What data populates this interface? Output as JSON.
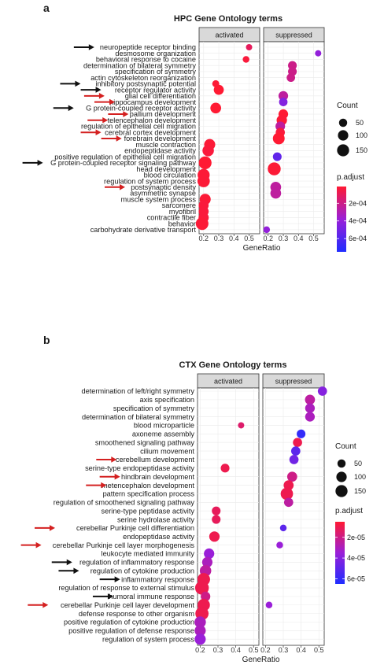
{
  "chart_data": [
    {
      "type": "scatter",
      "panel_letter": "a",
      "title": "HPC Gene Ontology terms",
      "xlabel": "GeneRatio",
      "x_ticks": [
        "0.2",
        "0.3",
        "0.4",
        "0.5"
      ],
      "facets": [
        "activated",
        "suppressed"
      ],
      "facet_xlim": [
        [
          0.17,
          0.57
        ],
        [
          0.17,
          0.57
        ]
      ],
      "terms": [
        "neuropeptide receptor binding",
        "desmosome organization",
        "behavioral response to cocaine",
        "determination of bilateral symmetry",
        "specification of symmetry",
        "actin cytoskeleton reorganization",
        "inhibitory postsynaptic potential",
        "receptor regulator activity",
        "glial cell differentiation",
        "hippocampus development",
        "G protein-coupled receptor activity",
        "pallium development",
        "telencephalon development",
        "regulation of epithelial cell migration",
        "cerebral cortex development",
        "forebrain development",
        "muscle contraction",
        "endopeptidase activity",
        "positive regulation of epithelial cell migration",
        "G protein-coupled receptor signaling pathway",
        "head development",
        "blood circulation",
        "regulation of system process",
        "postsynaptic density",
        "asymmetric synapse",
        "muscle system process",
        "sarcomere",
        "myofibril",
        "contractile fiber",
        "behavior",
        "carbohydrate derivative transport"
      ],
      "arrows": [
        {
          "term": "neuropeptide receptor binding",
          "color": "#111111"
        },
        {
          "term": "inhibitory postsynaptic potential",
          "color": "#111111"
        },
        {
          "term": "receptor regulator activity",
          "color": "#111111"
        },
        {
          "term": "glial cell differentiation",
          "color": "#d42020"
        },
        {
          "term": "hippocampus development",
          "color": "#d42020"
        },
        {
          "term": "G protein-coupled receptor activity",
          "color": "#111111"
        },
        {
          "term": "pallium development",
          "color": "#d42020"
        },
        {
          "term": "telencephalon development",
          "color": "#d42020"
        },
        {
          "term": "cerebral cortex development",
          "color": "#d42020"
        },
        {
          "term": "forebrain development",
          "color": "#d42020"
        },
        {
          "term": "G protein-coupled receptor signaling pathway",
          "color": "#111111"
        },
        {
          "term": "postsynaptic density",
          "color": "#d42020"
        }
      ],
      "points": [
        {
          "term": "neuropeptide receptor binding",
          "facet": "activated",
          "x": 0.5,
          "count": 20,
          "p_adjust": 0.0001
        },
        {
          "term": "behavioral response to cocaine",
          "facet": "activated",
          "x": 0.48,
          "count": 25,
          "p_adjust": 3e-05
        },
        {
          "term": "inhibitory postsynaptic potential",
          "facet": "activated",
          "x": 0.28,
          "count": 30,
          "p_adjust": 2e-05
        },
        {
          "term": "receptor regulator activity",
          "facet": "activated",
          "x": 0.3,
          "count": 90,
          "p_adjust": 1e-05
        },
        {
          "term": "G protein-coupled receptor activity",
          "facet": "activated",
          "x": 0.28,
          "count": 110,
          "p_adjust": 1e-05
        },
        {
          "term": "muscle contraction",
          "facet": "activated",
          "x": 0.24,
          "count": 120,
          "p_adjust": 2e-05
        },
        {
          "term": "endopeptidase activity",
          "facet": "activated",
          "x": 0.23,
          "count": 130,
          "p_adjust": 3e-05
        },
        {
          "term": "G protein-coupled receptor signaling pathway",
          "facet": "activated",
          "x": 0.21,
          "count": 175,
          "p_adjust": 1e-05
        },
        {
          "term": "blood circulation",
          "facet": "activated",
          "x": 0.2,
          "count": 150,
          "p_adjust": 2e-05
        },
        {
          "term": "regulation of system process",
          "facet": "activated",
          "x": 0.2,
          "count": 160,
          "p_adjust": 2e-05
        },
        {
          "term": "muscle system process",
          "facet": "activated",
          "x": 0.21,
          "count": 120,
          "p_adjust": 2e-05
        },
        {
          "term": "sarcomere",
          "facet": "activated",
          "x": 0.2,
          "count": 90,
          "p_adjust": 3e-05
        },
        {
          "term": "myofibril",
          "facet": "activated",
          "x": 0.2,
          "count": 90,
          "p_adjust": 3e-05
        },
        {
          "term": "contractile fiber",
          "facet": "activated",
          "x": 0.2,
          "count": 95,
          "p_adjust": 3e-05
        },
        {
          "term": "behavior",
          "facet": "activated",
          "x": 0.19,
          "count": 170,
          "p_adjust": 2e-05
        },
        {
          "term": "desmosome organization",
          "facet": "suppressed",
          "x": 0.53,
          "count": 20,
          "p_adjust": 0.0004
        },
        {
          "term": "determination of bilateral symmetry",
          "facet": "suppressed",
          "x": 0.36,
          "count": 60,
          "p_adjust": 0.0002
        },
        {
          "term": "specification of symmetry",
          "facet": "suppressed",
          "x": 0.36,
          "count": 60,
          "p_adjust": 0.0002
        },
        {
          "term": "actin cytoskeleton reorganization",
          "facet": "suppressed",
          "x": 0.35,
          "count": 55,
          "p_adjust": 0.0002
        },
        {
          "term": "glial cell differentiation",
          "facet": "suppressed",
          "x": 0.3,
          "count": 80,
          "p_adjust": 0.00025
        },
        {
          "term": "hippocampus development",
          "facet": "suppressed",
          "x": 0.3,
          "count": 55,
          "p_adjust": 0.00045
        },
        {
          "term": "pallium development",
          "facet": "suppressed",
          "x": 0.3,
          "count": 80,
          "p_adjust": 1e-05
        },
        {
          "term": "telencephalon development",
          "facet": "suppressed",
          "x": 0.29,
          "count": 100,
          "p_adjust": 2e-05
        },
        {
          "term": "regulation of epithelial cell migration",
          "facet": "suppressed",
          "x": 0.28,
          "count": 80,
          "p_adjust": 0.00025
        },
        {
          "term": "cerebral cortex development",
          "facet": "suppressed",
          "x": 0.28,
          "count": 70,
          "p_adjust": 3e-05
        },
        {
          "term": "forebrain development",
          "facet": "suppressed",
          "x": 0.27,
          "count": 140,
          "p_adjust": 1e-05
        },
        {
          "term": "positive regulation of epithelial cell migration",
          "facet": "suppressed",
          "x": 0.26,
          "count": 60,
          "p_adjust": 0.00055
        },
        {
          "term": "head development",
          "facet": "suppressed",
          "x": 0.24,
          "count": 180,
          "p_adjust": 2e-05
        },
        {
          "term": "postsynaptic density",
          "facet": "suppressed",
          "x": 0.25,
          "count": 110,
          "p_adjust": 0.00025
        },
        {
          "term": "asymmetric synapse",
          "facet": "suppressed",
          "x": 0.25,
          "count": 110,
          "p_adjust": 0.00025
        },
        {
          "term": "carbohydrate derivative transport",
          "facet": "suppressed",
          "x": 0.19,
          "count": 25,
          "p_adjust": 0.0004
        }
      ],
      "legend": {
        "count_title": "Count",
        "count_values": [
          50,
          100,
          150
        ],
        "color_title": "p.adjust",
        "color_labels": [
          "2e-04",
          "4e-04",
          "6e-04"
        ],
        "color_label_values": [
          0.0002,
          0.0004,
          0.0006
        ],
        "p_range": [
          1e-05,
          0.00075
        ],
        "color_low": "#ff1a33",
        "color_mid": "#9a1fd8",
        "color_high": "#1f2dff"
      }
    },
    {
      "type": "scatter",
      "panel_letter": "b",
      "title": "CTX Gene Ontology terms",
      "xlabel": "GeneRatio",
      "x_ticks": [
        "0.2",
        "0.3",
        "0.4",
        "0.5"
      ],
      "facets": [
        "activated",
        "suppressed"
      ],
      "facet_xlim": [
        [
          0.185,
          0.53
        ],
        [
          0.185,
          0.53
        ]
      ],
      "terms": [
        "determination of left/right symmetry",
        "axis specification",
        "specification of symmetry",
        "determination of bilateral symmetry",
        "blood microparticle",
        "axoneme assembly",
        "smoothened signaling pathway",
        "cilium movement",
        "cerebellum development",
        "serine-type endopeptidase activity",
        "hindbrain development",
        "metencephalon development",
        "pattern specification process",
        "regulation of smoothened signaling pathway",
        "serine-type peptidase activity",
        "serine hydrolase activity",
        "cerebellar Purkinje cell differentiation",
        "endopeptidase activity",
        "cerebellar Purkinje cell layer morphogenesis",
        "leukocyte mediated immunity",
        "regulation of inflammatory response",
        "regulation of cytokine production",
        "inflammatory response",
        "regulation of response to external stimulus",
        "humoral immune response",
        "cerebellar Purkinje cell layer development",
        "defense response to other organism",
        "positive regulation of cytokine production",
        "positive regulation of defense response",
        "regulation of system process"
      ],
      "arrows": [
        {
          "term": "cerebellum development",
          "color": "#d42020"
        },
        {
          "term": "hindbrain development",
          "color": "#d42020"
        },
        {
          "term": "metencephalon development",
          "color": "#d42020"
        },
        {
          "term": "cerebellar Purkinje cell differentiation",
          "color": "#d42020"
        },
        {
          "term": "cerebellar Purkinje cell layer morphogenesis",
          "color": "#d42020"
        },
        {
          "term": "regulation of inflammatory response",
          "color": "#111111"
        },
        {
          "term": "regulation of cytokine production",
          "color": "#111111"
        },
        {
          "term": "inflammatory response",
          "color": "#111111"
        },
        {
          "term": "humoral immune response",
          "color": "#111111"
        },
        {
          "term": "cerebellar Purkinje cell layer development",
          "color": "#d42020"
        }
      ],
      "points": [
        {
          "term": "blood microparticle",
          "facet": "activated",
          "x": 0.43,
          "count": 20,
          "p_adjust": 1.5e-05
        },
        {
          "term": "serine-type endopeptidase activity",
          "facet": "activated",
          "x": 0.34,
          "count": 60,
          "p_adjust": 1e-05
        },
        {
          "term": "serine-type peptidase activity",
          "facet": "activated",
          "x": 0.29,
          "count": 60,
          "p_adjust": 1.2e-05
        },
        {
          "term": "serine hydrolase activity",
          "facet": "activated",
          "x": 0.29,
          "count": 60,
          "p_adjust": 1.2e-05
        },
        {
          "term": "endopeptidase activity",
          "facet": "activated",
          "x": 0.28,
          "count": 100,
          "p_adjust": 1e-05
        },
        {
          "term": "leukocyte mediated immunity",
          "facet": "activated",
          "x": 0.25,
          "count": 100,
          "p_adjust": 3.5e-05
        },
        {
          "term": "regulation of inflammatory response",
          "facet": "activated",
          "x": 0.24,
          "count": 100,
          "p_adjust": 3e-05
        },
        {
          "term": "regulation of cytokine production",
          "facet": "activated",
          "x": 0.23,
          "count": 130,
          "p_adjust": 2.5e-05
        },
        {
          "term": "inflammatory response",
          "facet": "activated",
          "x": 0.22,
          "count": 170,
          "p_adjust": 1e-05
        },
        {
          "term": "regulation of response to external stimulus",
          "facet": "activated",
          "x": 0.21,
          "count": 210,
          "p_adjust": 1e-05
        },
        {
          "term": "humoral immune response",
          "facet": "activated",
          "x": 0.23,
          "count": 80,
          "p_adjust": 2e-05
        },
        {
          "term": "cerebellar Purkinje cell layer development",
          "facet": "activated",
          "x": 0.22,
          "count": 160,
          "p_adjust": 1e-05
        },
        {
          "term": "defense response to other organism",
          "facet": "activated",
          "x": 0.21,
          "count": 190,
          "p_adjust": 1e-05
        },
        {
          "term": "positive regulation of cytokine production",
          "facet": "activated",
          "x": 0.2,
          "count": 130,
          "p_adjust": 3e-05
        },
        {
          "term": "positive regulation of defense response",
          "facet": "activated",
          "x": 0.2,
          "count": 120,
          "p_adjust": 3e-05
        },
        {
          "term": "regulation of system process",
          "facet": "activated",
          "x": 0.2,
          "count": 120,
          "p_adjust": 3.5e-05
        },
        {
          "term": "determination of left/right symmetry",
          "facet": "suppressed",
          "x": 0.52,
          "count": 70,
          "p_adjust": 4e-05
        },
        {
          "term": "axis specification",
          "facet": "suppressed",
          "x": 0.45,
          "count": 90,
          "p_adjust": 2.5e-05
        },
        {
          "term": "specification of symmetry",
          "facet": "suppressed",
          "x": 0.45,
          "count": 80,
          "p_adjust": 3e-05
        },
        {
          "term": "determination of bilateral symmetry",
          "facet": "suppressed",
          "x": 0.45,
          "count": 80,
          "p_adjust": 3e-05
        },
        {
          "term": "axoneme assembly",
          "facet": "suppressed",
          "x": 0.4,
          "count": 60,
          "p_adjust": 6e-05
        },
        {
          "term": "smoothened signaling pathway",
          "facet": "suppressed",
          "x": 0.38,
          "count": 70,
          "p_adjust": 1e-05
        },
        {
          "term": "cilium movement",
          "facet": "suppressed",
          "x": 0.37,
          "count": 70,
          "p_adjust": 5e-05
        },
        {
          "term": "cerebellum development",
          "facet": "suppressed",
          "x": 0.36,
          "count": 70,
          "p_adjust": 4.5e-05
        },
        {
          "term": "hindbrain development",
          "facet": "suppressed",
          "x": 0.35,
          "count": 90,
          "p_adjust": 2e-05
        },
        {
          "term": "metencephalon development",
          "facet": "suppressed",
          "x": 0.33,
          "count": 90,
          "p_adjust": 1e-05
        },
        {
          "term": "pattern specification process",
          "facet": "suppressed",
          "x": 0.32,
          "count": 160,
          "p_adjust": 1e-05
        },
        {
          "term": "regulation of smoothened signaling pathway",
          "facet": "suppressed",
          "x": 0.33,
          "count": 70,
          "p_adjust": 2.5e-05
        },
        {
          "term": "cerebellar Purkinje cell differentiation",
          "facet": "suppressed",
          "x": 0.3,
          "count": 25,
          "p_adjust": 5e-05
        },
        {
          "term": "cerebellar Purkinje cell layer morphogenesis",
          "facet": "suppressed",
          "x": 0.28,
          "count": 25,
          "p_adjust": 3.5e-05
        },
        {
          "term": "cerebellar Purkinje cell layer development",
          "facet": "suppressed",
          "x": 0.22,
          "count": 25,
          "p_adjust": 3.5e-05
        }
      ],
      "legend": {
        "count_title": "Count",
        "count_values": [
          50,
          100,
          150
        ],
        "color_title": "p.adjust",
        "color_labels": [
          "2e-05",
          "4e-05",
          "6e-05"
        ],
        "color_label_values": [
          2e-05,
          4e-05,
          6e-05
        ],
        "p_range": [
          5e-06,
          6.5e-05
        ],
        "color_low": "#ff1a33",
        "color_mid": "#9a1fd8",
        "color_high": "#1f2dff"
      }
    }
  ]
}
